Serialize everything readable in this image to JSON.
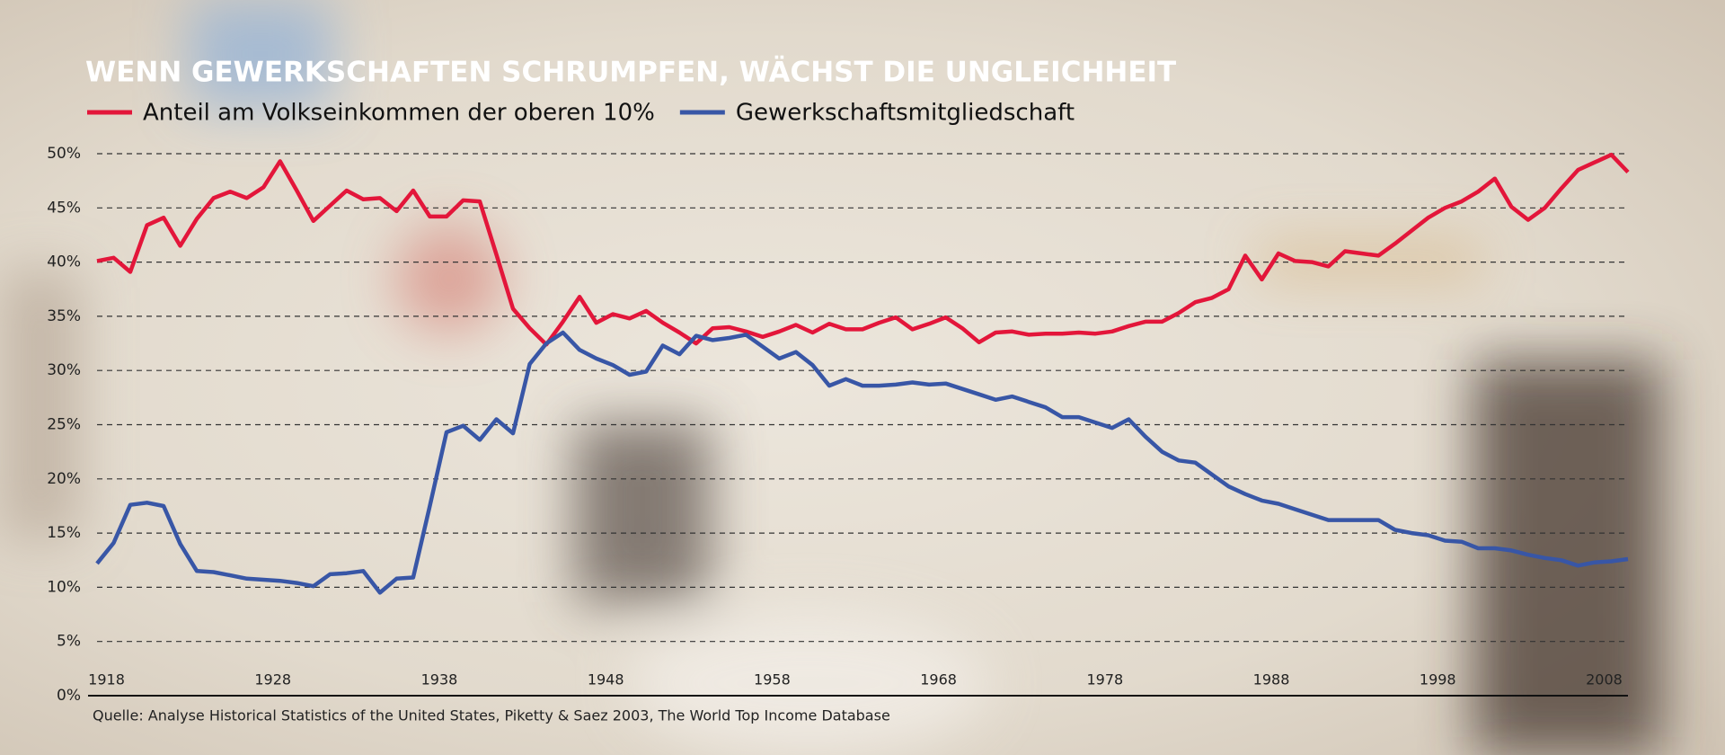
{
  "chart_data": {
    "type": "line",
    "title": "WENN GEWERKSCHAFTEN SCHRUMPFEN, WÄCHST DIE UNGLEICHHEIT",
    "source": "Quelle: Analyse Historical Statistics of the United States, Piketty & Saez 2003, The World Top Income Database",
    "x": [
      1917,
      1918,
      1919,
      1920,
      1921,
      1922,
      1923,
      1924,
      1925,
      1926,
      1927,
      1928,
      1929,
      1930,
      1931,
      1932,
      1933,
      1934,
      1935,
      1936,
      1937,
      1938,
      1939,
      1940,
      1941,
      1942,
      1943,
      1944,
      1945,
      1946,
      1947,
      1948,
      1949,
      1950,
      1951,
      1952,
      1953,
      1954,
      1955,
      1956,
      1957,
      1958,
      1959,
      1960,
      1961,
      1962,
      1963,
      1964,
      1965,
      1966,
      1967,
      1968,
      1969,
      1970,
      1971,
      1972,
      1973,
      1974,
      1975,
      1976,
      1977,
      1978,
      1979,
      1980,
      1981,
      1982,
      1983,
      1984,
      1985,
      1986,
      1987,
      1988,
      1989,
      1990,
      1991,
      1992,
      1993,
      1994,
      1995,
      1996,
      1997,
      1998,
      1999,
      2000,
      2001,
      2002,
      2003,
      2004,
      2005,
      2006,
      2007,
      2008,
      2009
    ],
    "series": [
      {
        "name": "Anteil am Volkseinkommen der oberen 10%",
        "color": "#e3163a",
        "values": [
          40.1,
          40.4,
          39.1,
          43.4,
          44.1,
          41.5,
          44.0,
          45.9,
          46.5,
          45.9,
          46.9,
          49.3,
          46.6,
          43.8,
          45.2,
          46.6,
          45.8,
          45.9,
          44.7,
          46.6,
          44.2,
          44.2,
          45.7,
          45.6,
          40.7,
          35.7,
          33.9,
          32.4,
          34.5,
          36.8,
          34.4,
          35.2,
          34.8,
          35.5,
          34.4,
          33.5,
          32.5,
          33.9,
          34.0,
          33.6,
          33.1,
          33.6,
          34.2,
          33.5,
          34.3,
          33.8,
          33.8,
          34.4,
          34.9,
          33.8,
          34.3,
          34.9,
          33.9,
          32.6,
          33.5,
          33.6,
          33.3,
          33.4,
          33.4,
          33.5,
          33.4,
          33.6,
          34.1,
          34.5,
          34.5,
          35.3,
          36.3,
          36.7,
          37.5,
          40.6,
          38.4,
          40.8,
          40.1,
          40.0,
          39.6,
          41.0,
          40.8,
          40.6,
          41.7,
          42.9,
          44.1,
          45.0,
          45.6,
          46.5,
          47.7,
          45.1,
          43.9,
          45.0,
          46.8,
          48.5,
          49.2,
          49.9,
          48.3
        ]
      },
      {
        "name": "Gewerkschaftsmitgliedschaft",
        "color": "#3856a6",
        "values": [
          12.2,
          14.1,
          17.6,
          17.8,
          17.5,
          14.0,
          11.5,
          11.4,
          11.1,
          10.8,
          10.7,
          10.6,
          10.4,
          10.1,
          11.2,
          11.3,
          11.5,
          9.5,
          10.8,
          10.9,
          17.5,
          24.3,
          24.9,
          23.6,
          25.5,
          24.2,
          30.6,
          32.5,
          33.5,
          31.9,
          31.1,
          30.5,
          29.6,
          29.9,
          32.3,
          31.5,
          33.2,
          32.8,
          33.0,
          33.3,
          32.2,
          31.1,
          31.7,
          30.5,
          28.6,
          29.2,
          28.6,
          28.6,
          28.7,
          28.9,
          28.7,
          28.8,
          28.3,
          27.8,
          27.3,
          27.6,
          27.1,
          26.6,
          25.7,
          25.7,
          25.2,
          24.7,
          25.5,
          23.9,
          22.5,
          21.7,
          21.5,
          20.4,
          19.3,
          18.6,
          18.0,
          17.7,
          17.2,
          16.7,
          16.2,
          16.2,
          16.2,
          16.2,
          15.3,
          15.0,
          14.8,
          14.3,
          14.2,
          13.6,
          13.6,
          13.4,
          13.0,
          12.7,
          12.5,
          12.0,
          12.3,
          12.4,
          12.6
        ]
      }
    ],
    "xlim": [
      1917,
      2009
    ],
    "xticks": [
      1918,
      1928,
      1938,
      1948,
      1958,
      1968,
      1978,
      1988,
      1998,
      2008
    ],
    "ylim": [
      0,
      50
    ],
    "yticks": [
      {
        "value": 0,
        "label": "0%"
      },
      {
        "value": 5,
        "label": "5%"
      },
      {
        "value": 10,
        "label": "10%"
      },
      {
        "value": 15,
        "label": "15%"
      },
      {
        "value": 20,
        "label": "20%"
      },
      {
        "value": 25,
        "label": "25%"
      },
      {
        "value": 30,
        "label": "30%"
      },
      {
        "value": 35,
        "label": "35%"
      },
      {
        "value": 40,
        "label": "40%"
      },
      {
        "value": 45,
        "label": "45%"
      },
      {
        "value": 50,
        "label": "50%"
      }
    ],
    "grid": true
  }
}
